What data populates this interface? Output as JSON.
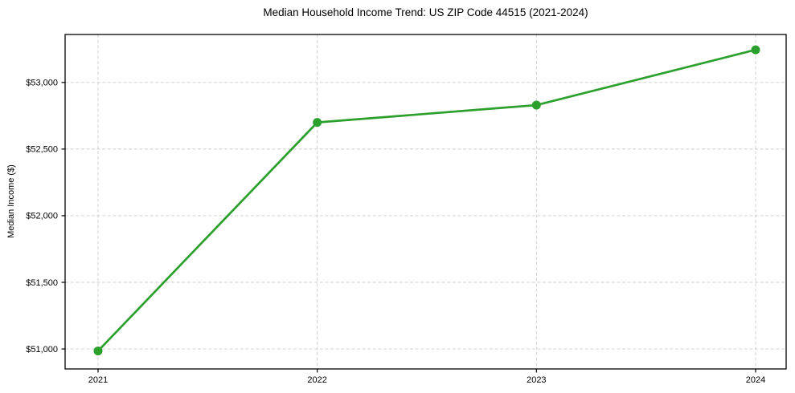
{
  "chart_data": {
    "type": "line",
    "title": "Median Household Income Trend: US ZIP Code 44515 (2021-2024)",
    "xlabel": "",
    "ylabel": "Median Income ($)",
    "categories": [
      "2021",
      "2022",
      "2023",
      "2024"
    ],
    "series": [
      {
        "name": "Median Household Income",
        "values": [
          50985,
          52700,
          52830,
          53245
        ],
        "color": "#2ca02c",
        "marker": "circle"
      }
    ],
    "y_ticks": {
      "values": [
        51000,
        51500,
        52000,
        52500,
        53000
      ],
      "labels": [
        "$51,000",
        "$51,500",
        "$52,000",
        "$52,500",
        "$53,000"
      ]
    },
    "ylim": [
      50850,
      53360
    ],
    "grid": true,
    "grid_color": "#cccccc",
    "grid_style": "dashed",
    "legend_position": "none",
    "background_color": "#ffffff",
    "axis_color": "#000000"
  }
}
